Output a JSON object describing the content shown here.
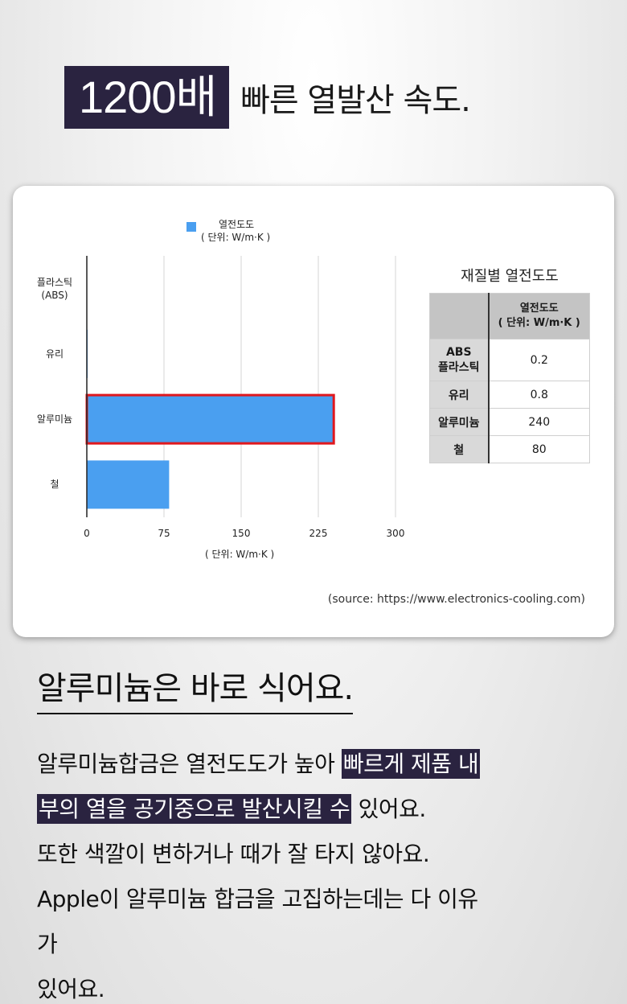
{
  "hero": {
    "highlight": "1200배",
    "rest": "빠른 열발산 속도."
  },
  "chart_data": {
    "type": "bar",
    "orientation": "horizontal",
    "legend": {
      "name": "열전도도",
      "unit": "( 단위: W/m·K )",
      "placement": "top"
    },
    "categories": [
      "플라스틱\n(ABS)",
      "유리",
      "알루미늄",
      "철"
    ],
    "values": [
      0.2,
      0.8,
      240,
      80
    ],
    "highlighted_category": "알루미늄",
    "xlim": [
      0,
      300
    ],
    "xticks": [
      "0",
      "75",
      "150",
      "225",
      "300"
    ],
    "xlabel": "( 단위: W/m·K )",
    "grid": true,
    "bar_color": "#4a9ff0",
    "highlight_color": "#e0181e"
  },
  "table": {
    "title": "재질별 열전도도",
    "header": "열전도도\n( 단위: W/m·K )",
    "rows": [
      {
        "name": "ABS\n플라스틱",
        "value": "0.2"
      },
      {
        "name": "유리",
        "value": "0.8"
      },
      {
        "name": "알루미늄",
        "value": "240"
      },
      {
        "name": "철",
        "value": "80"
      }
    ]
  },
  "source": "(source: https://www.electronics-cooling.com)",
  "heading": "알루미늄은 바로 식어요.",
  "body": {
    "line1_plain": "알루미늄합금은 열전도도가 높아 ",
    "line1_mark": "빠르게 제품 내",
    "line2_mark": "부의 열을 공기중으로 발산시킬 수",
    "line2_plain": " 있어요.",
    "line3": "또한 색깔이 변하거나 때가 잘 타지 않아요.",
    "line4": "Apple이 알루미늄 합금을 고집하는데는 다 이유",
    "line5": "가",
    "line6": "있어요."
  }
}
